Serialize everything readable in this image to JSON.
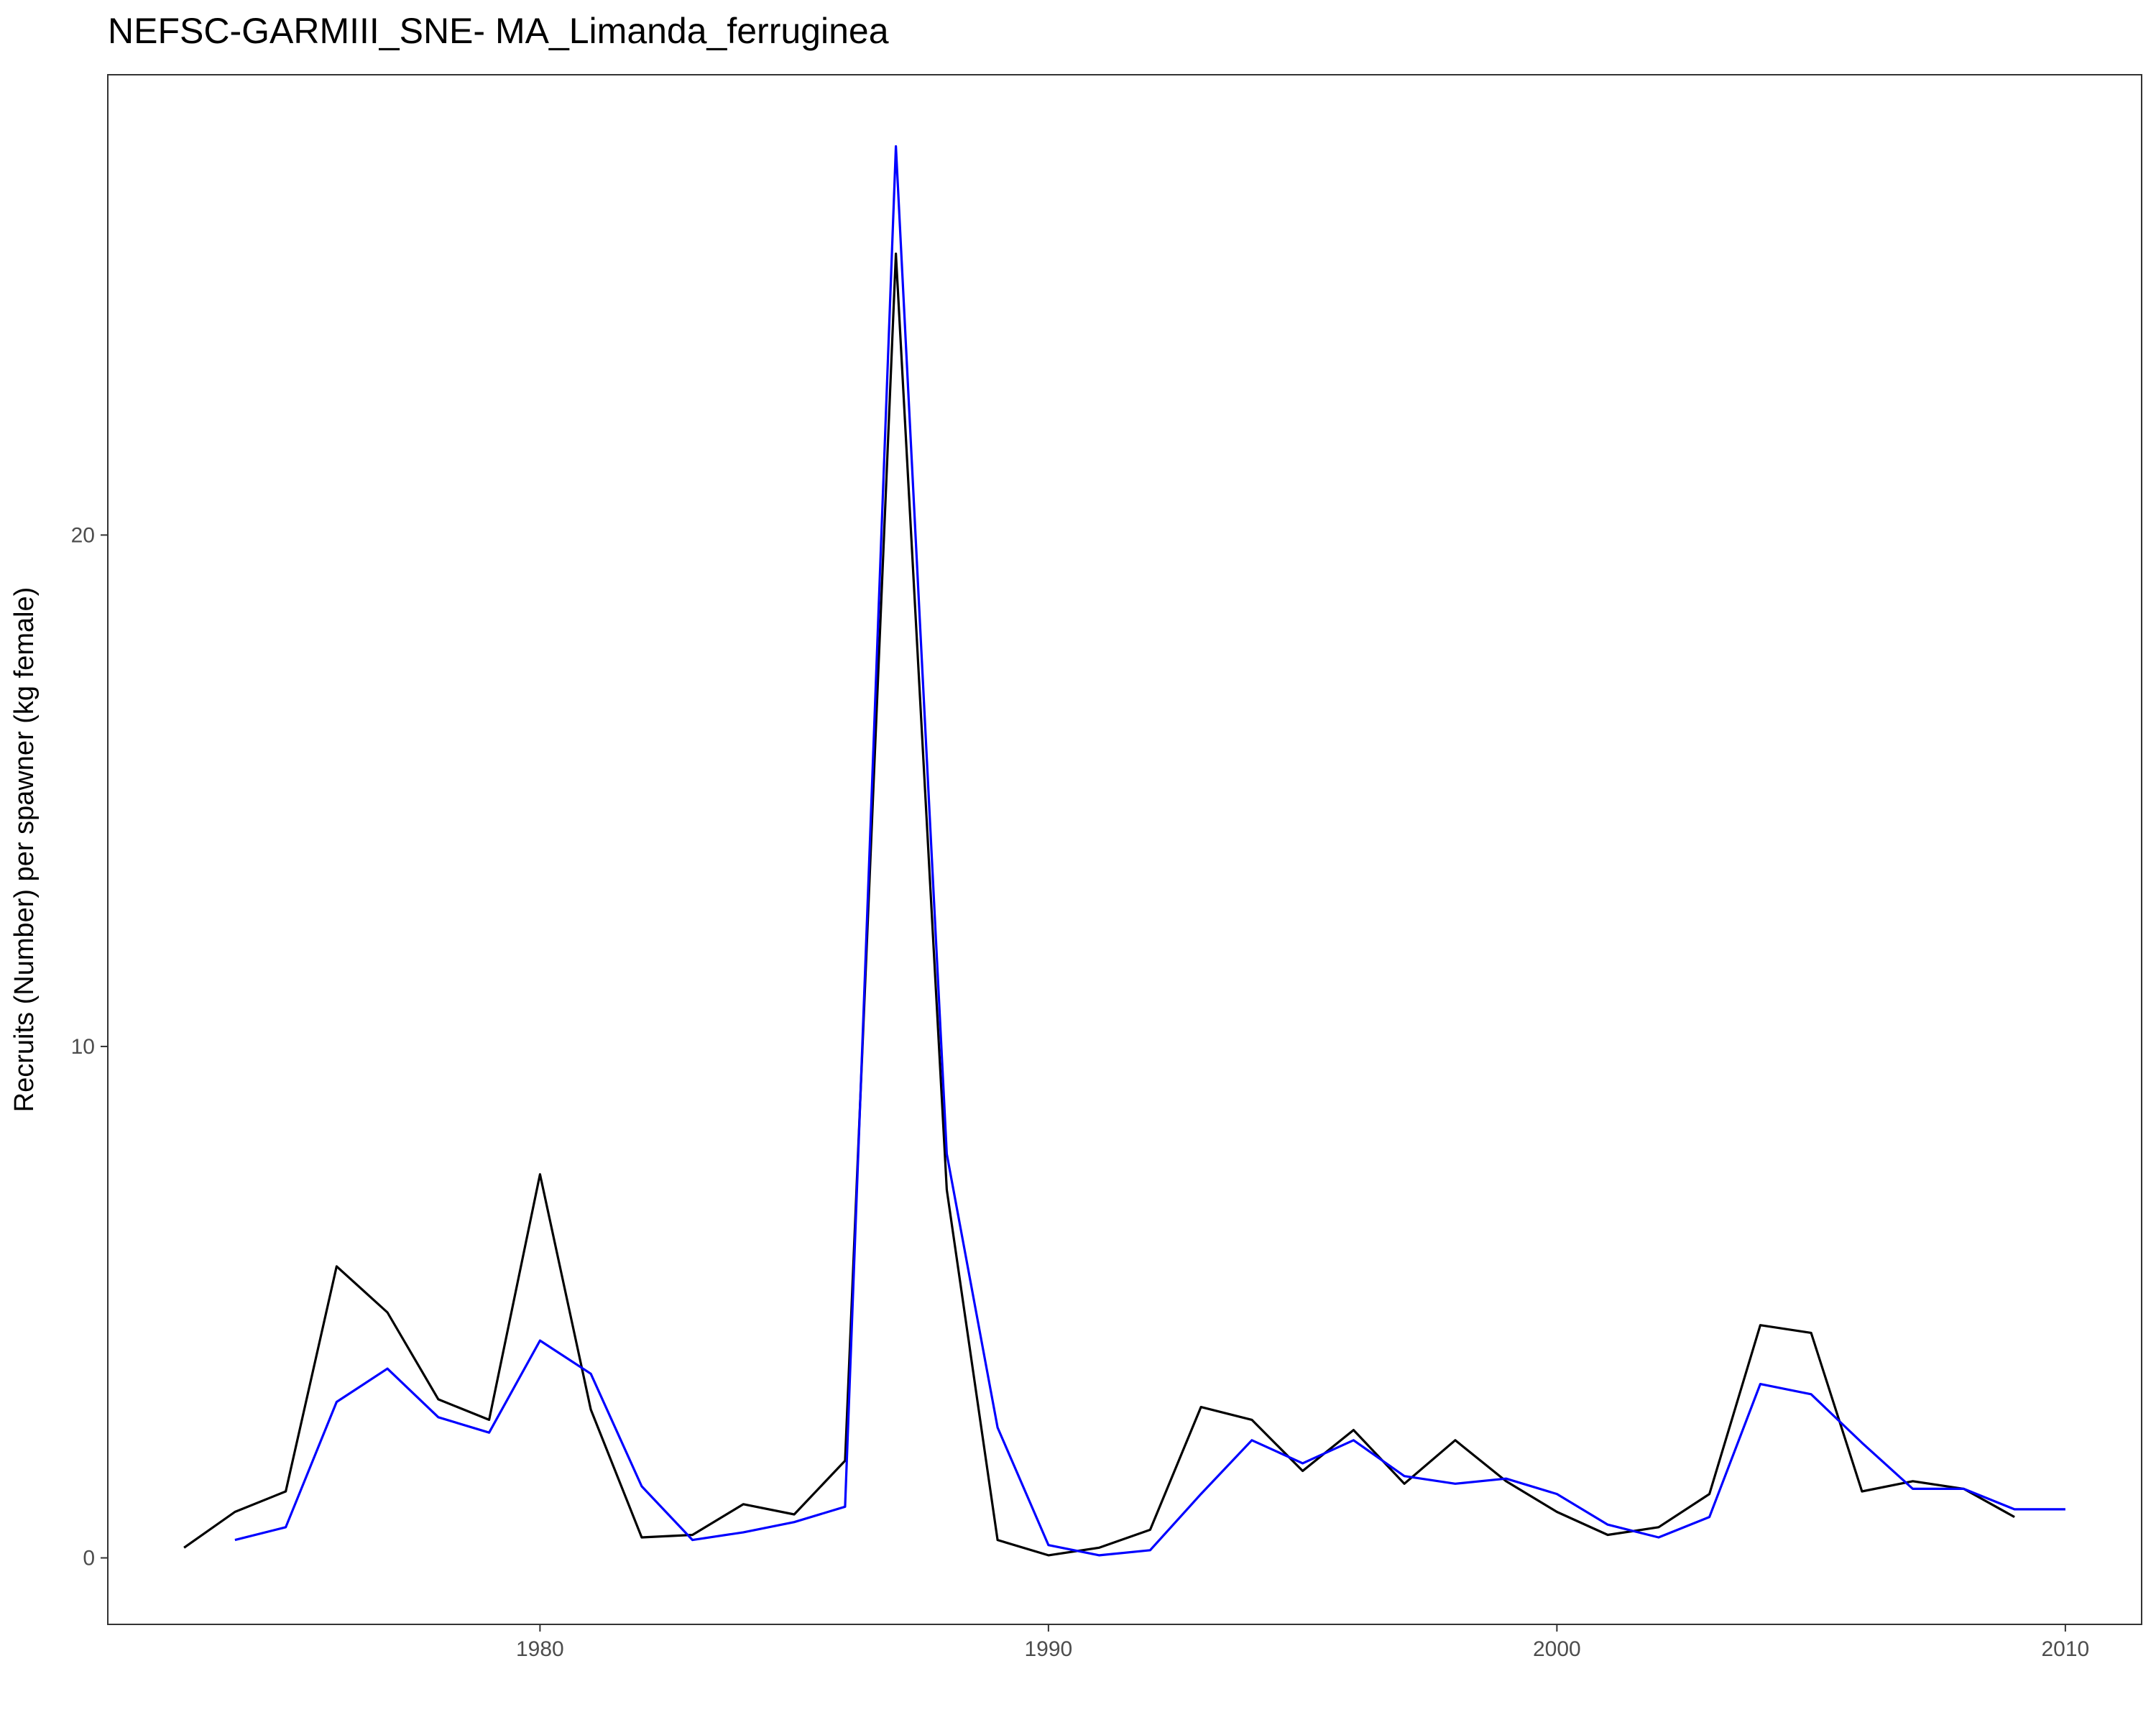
{
  "chart_data": {
    "type": "line",
    "title": "NEFSC-GARMIII_SNE- MA_Limanda_ferruginea",
    "xlabel": "",
    "ylabel": "Recruits (Number) per spawner (kg female)",
    "xlim": [
      1971.5,
      2011.5
    ],
    "ylim": [
      -1.3,
      29.0
    ],
    "x_ticks": [
      1980,
      1990,
      2000,
      2010
    ],
    "y_ticks": [
      0,
      10,
      20
    ],
    "grid": false,
    "legend": "none",
    "series": [
      {
        "color": "#000000",
        "x": [
          1973,
          1974,
          1975,
          1976,
          1977,
          1978,
          1979,
          1980,
          1981,
          1982,
          1983,
          1984,
          1985,
          1986,
          1987,
          1988,
          1989,
          1990,
          1991,
          1992,
          1993,
          1994,
          1995,
          1996,
          1997,
          1998,
          1999,
          2000,
          2001,
          2002,
          2003,
          2004,
          2005,
          2006,
          2007,
          2008,
          2009
        ],
        "y": [
          0.2,
          0.9,
          1.3,
          5.7,
          4.8,
          3.1,
          2.7,
          7.5,
          2.9,
          0.4,
          0.45,
          1.05,
          0.85,
          1.9,
          25.5,
          7.2,
          0.35,
          0.05,
          0.2,
          0.55,
          2.95,
          2.7,
          1.7,
          2.5,
          1.45,
          2.3,
          1.5,
          0.9,
          0.45,
          0.6,
          1.25,
          4.55,
          4.4,
          1.3,
          1.5,
          1.35,
          0.8
        ]
      },
      {
        "color": "#0000ff",
        "x": [
          1974,
          1975,
          1976,
          1977,
          1978,
          1979,
          1980,
          1981,
          1982,
          1983,
          1984,
          1985,
          1986,
          1987,
          1988,
          1989,
          1990,
          1991,
          1992,
          1993,
          1994,
          1995,
          1996,
          1997,
          1998,
          1999,
          2000,
          2001,
          2002,
          2003,
          2004,
          2005,
          2006,
          2007,
          2008,
          2009,
          2010
        ],
        "y": [
          0.35,
          0.6,
          3.05,
          3.7,
          2.75,
          2.45,
          4.25,
          3.6,
          1.4,
          0.35,
          0.5,
          0.7,
          1.0,
          27.6,
          7.9,
          2.55,
          0.25,
          0.05,
          0.15,
          1.25,
          2.3,
          1.85,
          2.3,
          1.6,
          1.45,
          1.55,
          1.25,
          0.65,
          0.4,
          0.8,
          3.4,
          3.2,
          2.25,
          1.35,
          1.35,
          0.95,
          0.95
        ]
      }
    ]
  }
}
